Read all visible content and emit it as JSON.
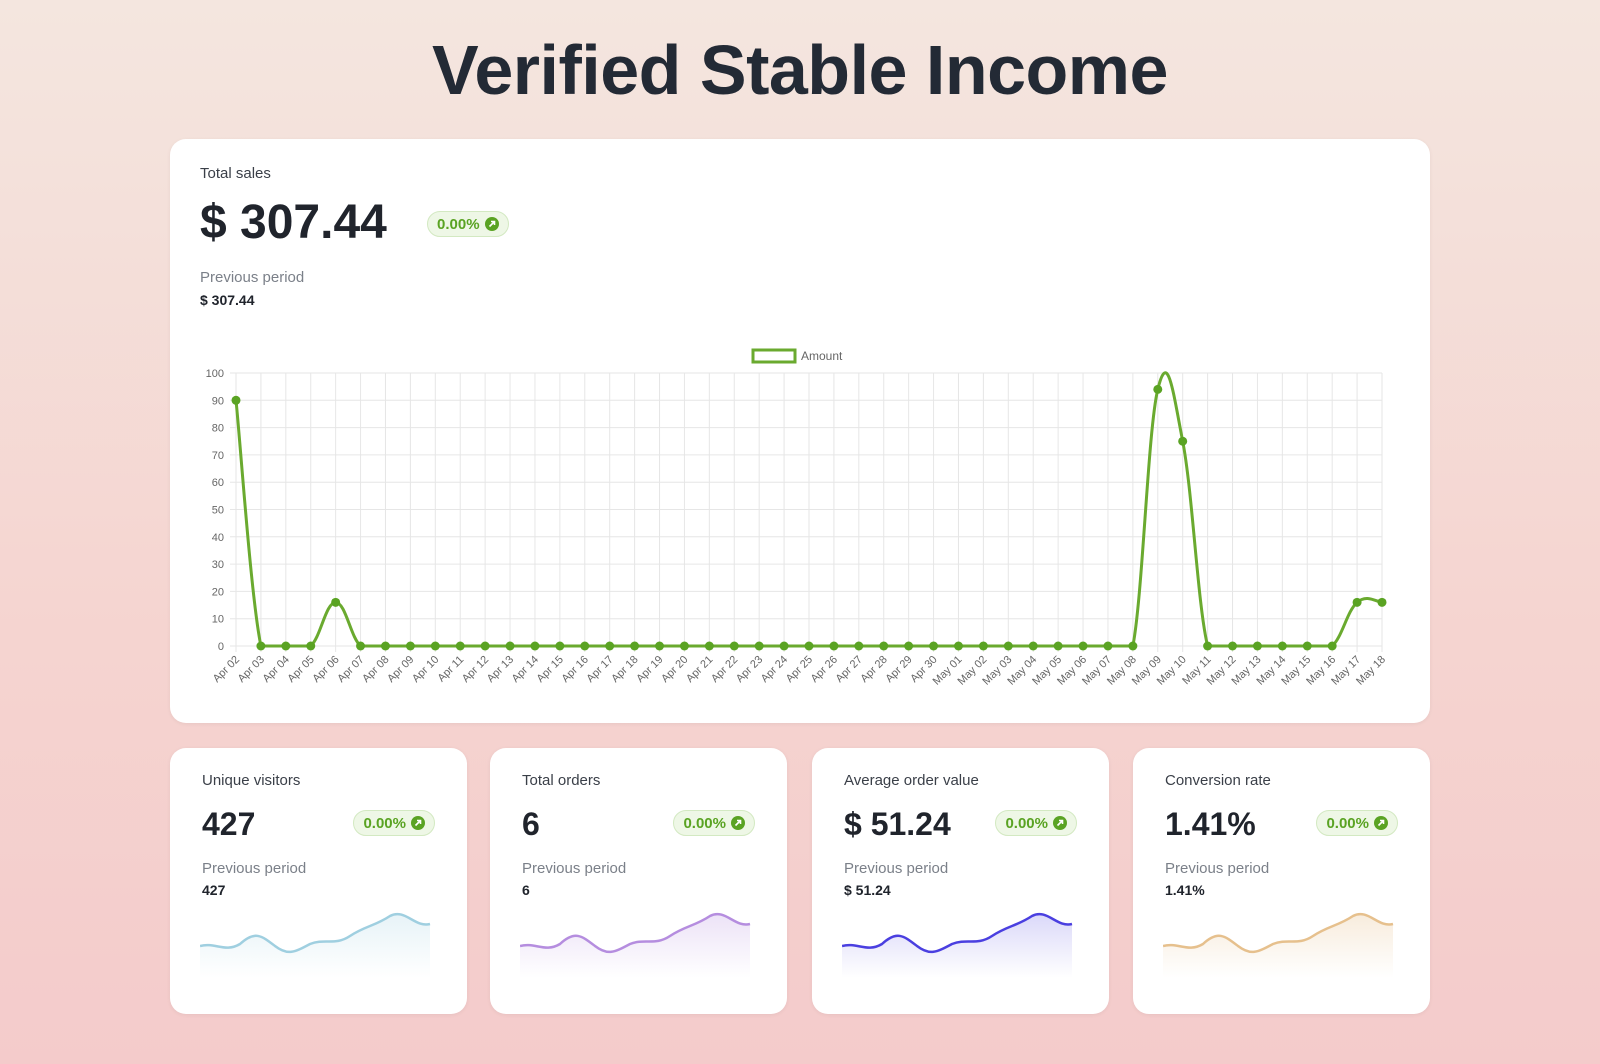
{
  "page": {
    "title": "Verified Stable Income"
  },
  "colors": {
    "accent_green": "#5aa323",
    "line_green": "#6aaa2f",
    "visitors_line": "#9fcfe0",
    "orders_line": "#b58ddf",
    "aov_line": "#4a3fe0",
    "conversion_line": "#e6c08d"
  },
  "total_sales": {
    "label": "Total sales",
    "value": "$ 307.44",
    "change": "0.00%",
    "previous_label": "Previous period",
    "previous_value": "$ 307.44"
  },
  "chart_data": {
    "type": "line",
    "legend": "Amount",
    "x": [
      "Apr 02",
      "Apr 03",
      "Apr 04",
      "Apr 05",
      "Apr 06",
      "Apr 07",
      "Apr 08",
      "Apr 09",
      "Apr 10",
      "Apr 11",
      "Apr 12",
      "Apr 13",
      "Apr 14",
      "Apr 15",
      "Apr 16",
      "Apr 17",
      "Apr 18",
      "Apr 19",
      "Apr 20",
      "Apr 21",
      "Apr 22",
      "Apr 23",
      "Apr 24",
      "Apr 25",
      "Apr 26",
      "Apr 27",
      "Apr 28",
      "Apr 29",
      "Apr 30",
      "May 01",
      "May 02",
      "May 03",
      "May 04",
      "May 05",
      "May 06",
      "May 07",
      "May 08",
      "May 09",
      "May 10",
      "May 11",
      "May 12",
      "May 13",
      "May 14",
      "May 15",
      "May 16",
      "May 17",
      "May 18"
    ],
    "series": [
      {
        "name": "Amount",
        "values": [
          90,
          0,
          0,
          0,
          16,
          0,
          0,
          0,
          0,
          0,
          0,
          0,
          0,
          0,
          0,
          0,
          0,
          0,
          0,
          0,
          0,
          0,
          0,
          0,
          0,
          0,
          0,
          0,
          0,
          0,
          0,
          0,
          0,
          0,
          0,
          0,
          0,
          94,
          75,
          0,
          0,
          0,
          0,
          0,
          0,
          16,
          16
        ]
      }
    ],
    "ylim": [
      0,
      100
    ],
    "yticks": [
      0,
      10,
      20,
      30,
      40,
      50,
      60,
      70,
      80,
      90,
      100
    ],
    "grid": true,
    "legend_position": "top-center"
  },
  "metrics": [
    {
      "label": "Unique visitors",
      "value": "427",
      "change": "0.00%",
      "previous_label": "Previous period",
      "previous_value": "427"
    },
    {
      "label": "Total orders",
      "value": "6",
      "change": "0.00%",
      "previous_label": "Previous period",
      "previous_value": "6"
    },
    {
      "label": "Average order value",
      "value": "$ 51.24",
      "change": "0.00%",
      "previous_label": "Previous period",
      "previous_value": "$ 51.24"
    },
    {
      "label": "Conversion rate",
      "value": "1.41%",
      "change": "0.00%",
      "previous_label": "Previous period",
      "previous_value": "1.41%"
    }
  ]
}
